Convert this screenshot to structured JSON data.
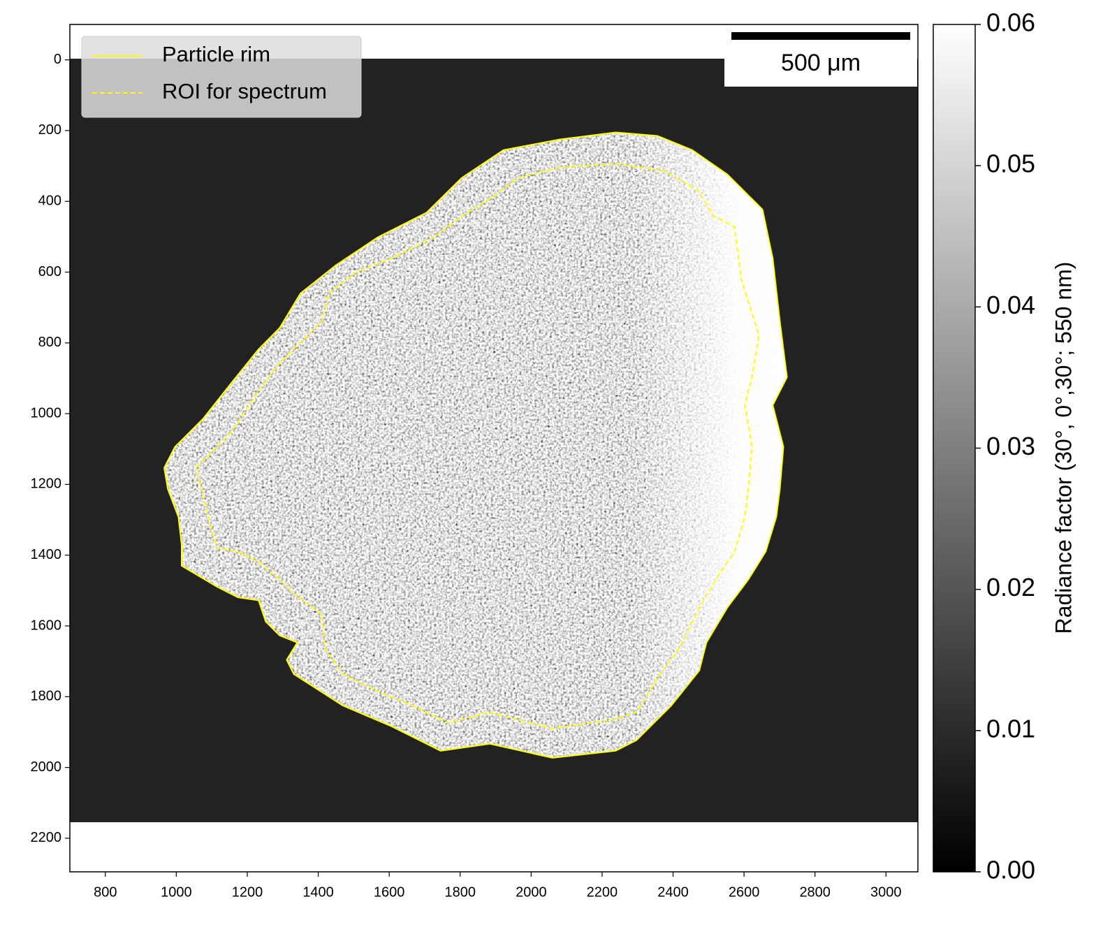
{
  "chart_data": {
    "type": "image-contour",
    "xlim": [
      700,
      3090
    ],
    "ylim": [
      2295,
      -100
    ],
    "xticks": [
      800,
      1000,
      1200,
      1400,
      1600,
      1800,
      2000,
      2200,
      2400,
      2600,
      2800,
      3000
    ],
    "yticks": [
      0,
      200,
      400,
      600,
      800,
      1000,
      1200,
      1400,
      1600,
      1800,
      2000,
      2200
    ],
    "scale_bar": "500 μm",
    "colorbar": {
      "label": "Radiance factor (30°, 0°,30°; 550 nm)",
      "lim": [
        0,
        0.06
      ],
      "colors": [
        "#000000",
        "#ffffff"
      ],
      "ticks": [
        {
          "value": 0,
          "label": "0.00"
        },
        0.01,
        0.02,
        0.03,
        0.04,
        0.05,
        0.06
      ]
    },
    "legend": "upper left",
    "series": [
      {
        "name": "Particle rim",
        "color": "#ffff00",
        "linestyle": "solid",
        "x": [
          966,
          996,
          1075,
          1153,
          1232,
          1291,
          1350,
          1449,
          1567,
          1705,
          1804,
          1922,
          2080,
          2238,
          2356,
          2454,
          2553,
          2652,
          2681,
          2701,
          2721,
          2681,
          2711,
          2701,
          2691,
          2661,
          2612,
          2553,
          2494,
          2474,
          2395,
          2297,
          2238,
          2060,
          1883,
          1745,
          1607,
          1469,
          1331,
          1311,
          1341,
          1291,
          1252,
          1232,
          1173,
          1114,
          1015,
          1015,
          1006,
          976
        ],
        "y": [
          1153,
          1094,
          1015,
          916,
          818,
          758,
          660,
          581,
          502,
          432,
          334,
          255,
          225,
          205,
          215,
          255,
          324,
          423,
          561,
          739,
          897,
          976,
          1094,
          1213,
          1292,
          1390,
          1469,
          1548,
          1647,
          1726,
          1825,
          1923,
          1953,
          1973,
          1933,
          1953,
          1884,
          1825,
          1736,
          1696,
          1647,
          1627,
          1588,
          1528,
          1519,
          1489,
          1430,
          1370,
          1292,
          1213
        ]
      },
      {
        "name": "ROI for spectrum",
        "color": "#ffff00",
        "linestyle": "dashed",
        "x": [
          1055,
          1094,
          1153,
          1193,
          1232,
          1291,
          1350,
          1410,
          1429,
          1508,
          1607,
          1725,
          1804,
          1883,
          1962,
          2080,
          2238,
          2376,
          2474,
          2514,
          2573,
          2592,
          2642,
          2622,
          2602,
          2622,
          2612,
          2602,
          2573,
          2533,
          2474,
          2415,
          2356,
          2297,
          2238,
          2060,
          1883,
          1764,
          1666,
          1567,
          1469,
          1420,
          1410,
          1331,
          1291,
          1232,
          1173,
          1114,
          1094,
          1075
        ],
        "y": [
          1153,
          1114,
          1054,
          995,
          936,
          857,
          798,
          739,
          660,
          600,
          561,
          502,
          442,
          393,
          334,
          304,
          294,
          314,
          373,
          442,
          472,
          620,
          778,
          897,
          976,
          1094,
          1213,
          1292,
          1390,
          1449,
          1548,
          1667,
          1746,
          1844,
          1864,
          1890,
          1844,
          1874,
          1825,
          1785,
          1736,
          1667,
          1568,
          1509,
          1469,
          1420,
          1390,
          1380,
          1311,
          1232
        ]
      }
    ]
  }
}
